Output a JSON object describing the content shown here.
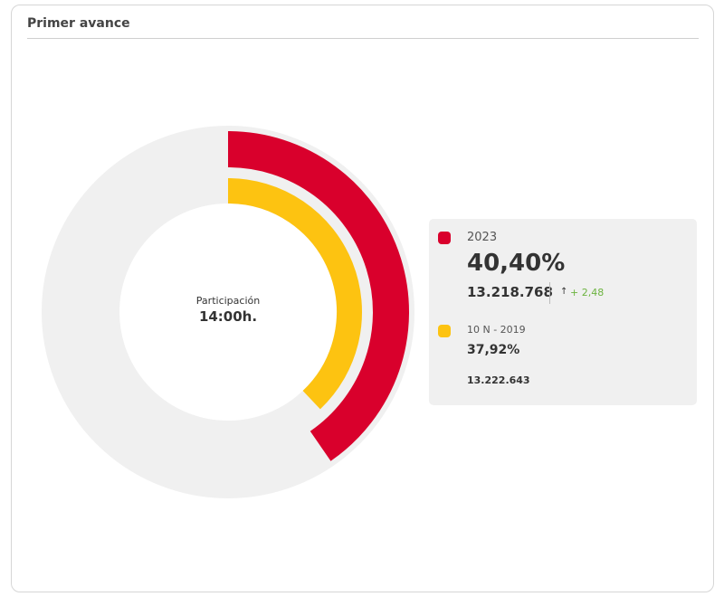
{
  "header": {
    "title": "Primer avance"
  },
  "center": {
    "label": "Participación",
    "time": "14:00h."
  },
  "chart_data": {
    "type": "pie",
    "title": "Primer avance",
    "series": [
      {
        "name": "2023",
        "value": 40.4,
        "color": "#d9002c",
        "display": "40,40%",
        "votes": "13.218.768",
        "change": "+ 2,48"
      },
      {
        "name": "10 N - 2019",
        "value": 37.92,
        "color": "#fdc311",
        "display": "37,92%",
        "votes": "13.222.643"
      }
    ],
    "max": 100,
    "track_color": "#f0f0f0"
  }
}
